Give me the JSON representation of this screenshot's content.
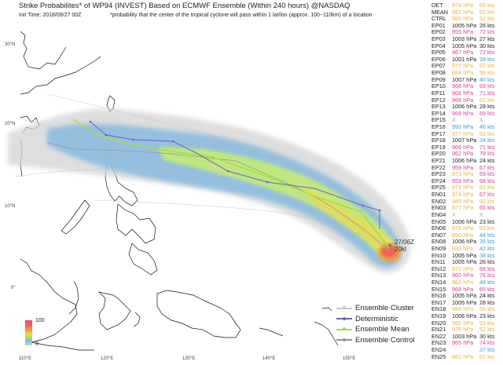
{
  "header": {
    "title": "Strike Probabilites* of WP94 (INVEST) Based on ECMWF Ensemble (Within 240 hours) @NASDAQ",
    "init_time": "Init Time: 2018/09/27 00Z",
    "footnote": "*probability that the center of the tropical cyclone will pass within 1 lat/lon (approx. 100~110km) of a location"
  },
  "map": {
    "lat_labels": [
      "30°N",
      "20°N",
      "10°N",
      "0°"
    ],
    "lon_labels": [
      "110°E",
      "120°E",
      "130°E",
      "140°E",
      "150°E"
    ],
    "colorbar": {
      "max": "100",
      "min": "0",
      "colors": [
        "#e84a7a",
        "#f0a030",
        "#e8e040",
        "#a0e050",
        "#70c0e0",
        "#d0d0d0"
      ]
    },
    "position_tag": {
      "marker": "×",
      "time": "27/06Z",
      "wind": "20kt"
    },
    "legend": [
      {
        "label": "Ensemble Cluster",
        "color": "#c8c8c8"
      },
      {
        "label": "Deterministic",
        "color": "#7060c0"
      },
      {
        "label": "Ensemble Mean",
        "color": "#a0e040"
      },
      {
        "label": "Ensemble Control",
        "color": "#909090"
      }
    ]
  },
  "colors": {
    "black": "#222222",
    "yellow": "#e8b440",
    "magenta": "#e0409a",
    "blue": "#3a9ad9",
    "missing": "#aaaaaa"
  },
  "members": [
    {
      "id": "DET",
      "hpa": "974 hPa",
      "kts": "69 kts",
      "hc": "y",
      "kc": "y"
    },
    {
      "id": "MEAN",
      "hpa": "981 hPa",
      "kts": "52 kts",
      "hc": "y",
      "kc": "y"
    },
    {
      "id": "CTRL",
      "hpa": "980 hPa",
      "kts": "52 kts",
      "hc": "y",
      "kc": "y"
    },
    {
      "id": "EP01",
      "hpa": "1005 hPa",
      "kts": "26 kts",
      "hc": "k",
      "kc": "k"
    },
    {
      "id": "EP02",
      "hpa": "955 hPa",
      "kts": "72 kts",
      "hc": "m",
      "kc": "m"
    },
    {
      "id": "EP03",
      "hpa": "1003 hPa",
      "kts": "27 kts",
      "hc": "k",
      "kc": "k"
    },
    {
      "id": "EP04",
      "hpa": "1005 hPa",
      "kts": "30 kts",
      "hc": "k",
      "kc": "k"
    },
    {
      "id": "EP05",
      "hpa": "967 hPa",
      "kts": "72 kts",
      "hc": "m",
      "kc": "m"
    },
    {
      "id": "EP06",
      "hpa": "1001 hPa",
      "kts": "39 kts",
      "hc": "k",
      "kc": "b"
    },
    {
      "id": "EP07",
      "hpa": "972 hPa",
      "kts": "62 kts",
      "hc": "y",
      "kc": "y"
    },
    {
      "id": "EP08",
      "hpa": "984 hPa",
      "kts": "56 kts",
      "hc": "y",
      "kc": "y"
    },
    {
      "id": "EP09",
      "hpa": "1007 hPa",
      "kts": "40 kts",
      "hc": "k",
      "kc": "b"
    },
    {
      "id": "EP10",
      "hpa": "968 hPa",
      "kts": "69 kts",
      "hc": "m",
      "kc": "m"
    },
    {
      "id": "EP11",
      "hpa": "966 hPa",
      "kts": "71 kts",
      "hc": "m",
      "kc": "m"
    },
    {
      "id": "EP12",
      "hpa": "966 hPa",
      "kts": "62 kts",
      "hc": "m",
      "kc": "y"
    },
    {
      "id": "EP13",
      "hpa": "1006 hPa",
      "kts": "28 kts",
      "hc": "k",
      "kc": "k"
    },
    {
      "id": "EP14",
      "hpa": "968 hPa",
      "kts": "69 kts",
      "hc": "m",
      "kc": "m"
    },
    {
      "id": "EP15",
      "hpa": "X",
      "kts": "X",
      "hc": "x",
      "kc": "x"
    },
    {
      "id": "EP16",
      "hpa": "992 hPa",
      "kts": "46 kts",
      "hc": "b",
      "kc": "b"
    },
    {
      "id": "EP17",
      "hpa": "977 hPa",
      "kts": "53 kts",
      "hc": "y",
      "kc": "y"
    },
    {
      "id": "EP18",
      "hpa": "1007 hPa",
      "kts": "34 kts",
      "hc": "k",
      "kc": "b"
    },
    {
      "id": "EP19",
      "hpa": "966 hPa",
      "kts": "71 kts",
      "hc": "m",
      "kc": "m"
    },
    {
      "id": "EP20",
      "hpa": "962 hPa",
      "kts": "78 kts",
      "hc": "m",
      "kc": "m"
    },
    {
      "id": "EP21",
      "hpa": "1006 hPa",
      "kts": "24 kts",
      "hc": "k",
      "kc": "k"
    },
    {
      "id": "EP22",
      "hpa": "959 hPa",
      "kts": "67 kts",
      "hc": "m",
      "kc": "m"
    },
    {
      "id": "EP23",
      "hpa": "973 hPa",
      "kts": "69 kts",
      "hc": "y",
      "kc": "m"
    },
    {
      "id": "EP24",
      "hpa": "959 hPa",
      "kts": "68 kts",
      "hc": "m",
      "kc": "m"
    },
    {
      "id": "EP25",
      "hpa": "974 hPa",
      "kts": "63 kts",
      "hc": "y",
      "kc": "y"
    },
    {
      "id": "EN01",
      "hpa": "974 hPa",
      "kts": "67 kts",
      "hc": "y",
      "kc": "m"
    },
    {
      "id": "EN02",
      "hpa": "985 hPa",
      "kts": "60 kts",
      "hc": "y",
      "kc": "y"
    },
    {
      "id": "EN03",
      "hpa": "977 hPa",
      "kts": "65 kts",
      "hc": "y",
      "kc": "m"
    },
    {
      "id": "EN04",
      "hpa": "X",
      "kts": "X",
      "hc": "x",
      "kc": "x"
    },
    {
      "id": "EN05",
      "hpa": "1006 hPa",
      "kts": "23 kts",
      "hc": "k",
      "kc": "k"
    },
    {
      "id": "EN06",
      "hpa": "976 hPa",
      "kts": "53 kts",
      "hc": "y",
      "kc": "y"
    },
    {
      "id": "EN07",
      "hpa": "990 hPa",
      "kts": "44 kts",
      "hc": "y",
      "kc": "b"
    },
    {
      "id": "EN08",
      "hpa": "1006 hPa",
      "kts": "35 kts",
      "hc": "k",
      "kc": "b"
    },
    {
      "id": "EN09",
      "hpa": "989 hPa",
      "kts": "42 kts",
      "hc": "y",
      "kc": "b"
    },
    {
      "id": "EN10",
      "hpa": "1005 hPa",
      "kts": "38 kts",
      "hc": "k",
      "kc": "b"
    },
    {
      "id": "EN11",
      "hpa": "1005 hPa",
      "kts": "26 kts",
      "hc": "k",
      "kc": "k"
    },
    {
      "id": "EN12",
      "hpa": "973 hPa",
      "kts": "66 kts",
      "hc": "y",
      "kc": "m"
    },
    {
      "id": "EN13",
      "hpa": "960 hPa",
      "kts": "76 kts",
      "hc": "m",
      "kc": "m"
    },
    {
      "id": "EN14",
      "hpa": "982 hPa",
      "kts": "48 kts",
      "hc": "y",
      "kc": "b"
    },
    {
      "id": "EN15",
      "hpa": "968 hPa",
      "kts": "65 kts",
      "hc": "m",
      "kc": "m"
    },
    {
      "id": "EN16",
      "hpa": "1005 hPa",
      "kts": "24 kts",
      "hc": "k",
      "kc": "k"
    },
    {
      "id": "EN17",
      "hpa": "1005 hPa",
      "kts": "28 kts",
      "hc": "k",
      "kc": "k"
    },
    {
      "id": "EN18",
      "hpa": "984 hPa",
      "kts": "56 kts",
      "hc": "y",
      "kc": "y"
    },
    {
      "id": "EN19",
      "hpa": "1006 hPa",
      "kts": "23 kts",
      "hc": "k",
      "kc": "k"
    },
    {
      "id": "EN20",
      "hpa": "982 hPa",
      "kts": "53 kts",
      "hc": "y",
      "kc": "y"
    },
    {
      "id": "EN21",
      "hpa": "975 hPa",
      "kts": "52 kts",
      "hc": "y",
      "kc": "y"
    },
    {
      "id": "EN22",
      "hpa": "1003 hPa",
      "kts": "30 kts",
      "hc": "k",
      "kc": "k"
    },
    {
      "id": "EN23",
      "hpa": "965 hPa",
      "kts": "74 kts",
      "hc": "m",
      "kc": "m"
    },
    {
      "id": "EN24",
      "hpa": "",
      "kts": "37 kts",
      "hc": "b",
      "kc": "b"
    },
    {
      "id": "EN25",
      "hpa": "981 hPa",
      "kts": "52 kts",
      "hc": "y",
      "kc": "y"
    }
  ]
}
